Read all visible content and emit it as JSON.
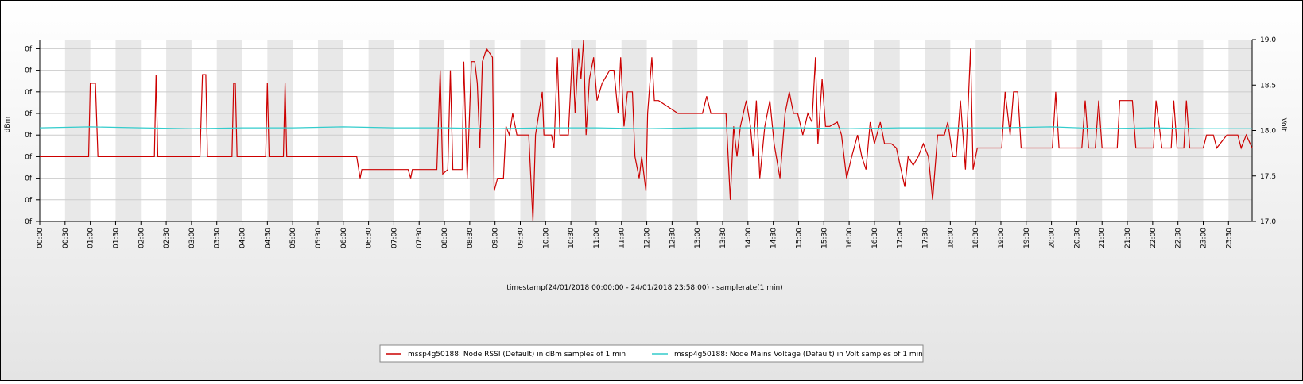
{
  "chart_data": {
    "type": "line",
    "xlabel": "timestamp(24/01/2018 00:00:00 - 24/01/2018 23:58:00) - samplerate(1 min)",
    "ylabel": "dBm",
    "y2label": "Volt",
    "xlim": [
      0,
      1438
    ],
    "xticks": [
      {
        "value": 0,
        "label": "00:00"
      },
      {
        "value": 30,
        "label": "00:30"
      },
      {
        "value": 60,
        "label": "01:00"
      },
      {
        "value": 90,
        "label": "01:30"
      },
      {
        "value": 120,
        "label": "02:00"
      },
      {
        "value": 150,
        "label": "02:30"
      },
      {
        "value": 180,
        "label": "03:00"
      },
      {
        "value": 210,
        "label": "03:30"
      },
      {
        "value": 240,
        "label": "04:00"
      },
      {
        "value": 270,
        "label": "04:30"
      },
      {
        "value": 300,
        "label": "05:00"
      },
      {
        "value": 330,
        "label": "05:30"
      },
      {
        "value": 360,
        "label": "06:00"
      },
      {
        "value": 390,
        "label": "06:30"
      },
      {
        "value": 420,
        "label": "07:00"
      },
      {
        "value": 450,
        "label": "07:30"
      },
      {
        "value": 480,
        "label": "08:00"
      },
      {
        "value": 510,
        "label": "08:30"
      },
      {
        "value": 540,
        "label": "09:00"
      },
      {
        "value": 570,
        "label": "09:30"
      },
      {
        "value": 600,
        "label": "10:00"
      },
      {
        "value": 630,
        "label": "10:30"
      },
      {
        "value": 660,
        "label": "11:00"
      },
      {
        "value": 690,
        "label": "11:30"
      },
      {
        "value": 720,
        "label": "12:00"
      },
      {
        "value": 750,
        "label": "12:30"
      },
      {
        "value": 780,
        "label": "13:00"
      },
      {
        "value": 810,
        "label": "13:30"
      },
      {
        "value": 840,
        "label": "14:00"
      },
      {
        "value": 870,
        "label": "14:30"
      },
      {
        "value": 900,
        "label": "15:00"
      },
      {
        "value": 930,
        "label": "15:30"
      },
      {
        "value": 960,
        "label": "16:00"
      },
      {
        "value": 990,
        "label": "16:30"
      },
      {
        "value": 1020,
        "label": "17:00"
      },
      {
        "value": 1050,
        "label": "17:30"
      },
      {
        "value": 1080,
        "label": "18:00"
      },
      {
        "value": 1110,
        "label": "18:30"
      },
      {
        "value": 1140,
        "label": "19:00"
      },
      {
        "value": 1170,
        "label": "19:30"
      },
      {
        "value": 1200,
        "label": "20:00"
      },
      {
        "value": 1230,
        "label": "20:30"
      },
      {
        "value": 1260,
        "label": "21:00"
      },
      {
        "value": 1290,
        "label": "21:30"
      },
      {
        "value": 1320,
        "label": "22:00"
      },
      {
        "value": 1350,
        "label": "22:30"
      },
      {
        "value": 1380,
        "label": "23:00"
      },
      {
        "value": 1410,
        "label": "23:30"
      }
    ],
    "ylim": [
      -100,
      -57.9
    ],
    "yticks": [
      {
        "value": -100,
        "label": "0f"
      },
      {
        "value": -95,
        "label": "0f"
      },
      {
        "value": -90,
        "label": "0f"
      },
      {
        "value": -85,
        "label": "0f"
      },
      {
        "value": -80,
        "label": "0f"
      },
      {
        "value": -75,
        "label": "0f"
      },
      {
        "value": -70,
        "label": "0f"
      },
      {
        "value": -65,
        "label": "0f"
      },
      {
        "value": -60,
        "label": "0f"
      }
    ],
    "y2lim": [
      17,
      19
    ],
    "y2ticks": [
      {
        "value": 17,
        "label": "17.0"
      },
      {
        "value": 17.5,
        "label": "17.5"
      },
      {
        "value": 18,
        "label": "18.0"
      },
      {
        "value": 18.5,
        "label": "18.5"
      },
      {
        "value": 19,
        "label": "19.0"
      }
    ],
    "grid": true,
    "legend": "bottom",
    "series": [
      {
        "name": "mssp4g50188: Node RSSI (Default) in dBm samples of 1 min",
        "color": "#cc0000",
        "x": [
          0,
          58,
          60,
          66,
          69,
          136,
          138,
          140,
          190,
          193,
          197,
          199,
          228,
          230,
          232,
          234,
          268,
          270,
          272,
          289,
          291,
          293,
          376,
          380,
          382,
          437,
          440,
          442,
          465,
          471,
          475,
          478,
          484,
          487,
          490,
          501,
          503,
          507,
          512,
          516,
          519,
          522,
          525,
          530,
          537,
          539,
          543,
          550,
          553,
          557,
          561,
          566,
          572,
          580,
          585,
          588,
          592,
          596,
          598,
          607,
          610,
          614,
          617,
          627,
          632,
          635,
          639,
          642,
          645,
          648,
          652,
          657,
          661,
          667,
          676,
          681,
          686,
          689,
          693,
          697,
          703,
          706,
          711,
          714,
          719,
          721,
          726,
          729,
          734,
          757,
          786,
          791,
          796,
          814,
          819,
          823,
          827,
          831,
          838,
          843,
          846,
          850,
          854,
          860,
          866,
          871,
          878,
          884,
          889,
          894,
          899,
          905,
          911,
          916,
          920,
          923,
          928,
          932,
          937,
          946,
          951,
          957,
          963,
          970,
          975,
          980,
          985,
          990,
          997,
          1002,
          1010,
          1016,
          1026,
          1030,
          1036,
          1042,
          1048,
          1054,
          1059,
          1065,
          1073,
          1077,
          1083,
          1087,
          1092,
          1098,
          1104,
          1107,
          1112,
          1141,
          1145,
          1151,
          1155,
          1160,
          1164,
          1201,
          1205,
          1209,
          1236,
          1240,
          1244,
          1252,
          1256,
          1260,
          1278,
          1281,
          1296,
          1300,
          1321,
          1324,
          1331,
          1342,
          1345,
          1349,
          1357,
          1360,
          1364,
          1380,
          1384,
          1392,
          1396,
          1408,
          1421,
          1425,
          1431,
          1438
        ],
        "values": [
          -85,
          -85,
          -68,
          -68,
          -85,
          -85,
          -66,
          -85,
          -85,
          -66,
          -66,
          -85,
          -85,
          -68,
          -68,
          -85,
          -85,
          -68,
          -85,
          -85,
          -68,
          -85,
          -85,
          -90,
          -88,
          -88,
          -90,
          -88,
          -88,
          -88,
          -65,
          -89,
          -88,
          -65,
          -88,
          -88,
          -63,
          -90,
          -63,
          -63,
          -68,
          -83,
          -63,
          -60,
          -62,
          -93,
          -90,
          -90,
          -78,
          -80,
          -75,
          -80,
          -80,
          -80,
          -100,
          -80,
          -75,
          -70,
          -80,
          -80,
          -83,
          -62,
          -80,
          -80,
          -60,
          -75,
          -60,
          -67,
          -58,
          -80,
          -67,
          -62,
          -72,
          -68,
          -65,
          -65,
          -75,
          -62,
          -78,
          -70,
          -70,
          -85,
          -90,
          -85,
          -93,
          -75,
          -62,
          -72,
          -72,
          -75,
          -75,
          -71,
          -75,
          -75,
          -95,
          -78,
          -85,
          -78,
          -72,
          -78,
          -85,
          -72,
          -90,
          -78,
          -72,
          -82,
          -90,
          -75,
          -70,
          -75,
          -75,
          -80,
          -75,
          -77,
          -62,
          -82,
          -67,
          -78,
          -78,
          -77,
          -80,
          -90,
          -85,
          -80,
          -85,
          -88,
          -77,
          -82,
          -77,
          -82,
          -82,
          -83,
          -92,
          -85,
          -87,
          -85,
          -82,
          -85,
          -95,
          -80,
          -80,
          -77,
          -85,
          -85,
          -72,
          -88,
          -60,
          -88,
          -83,
          -83,
          -70,
          -80,
          -70,
          -70,
          -83,
          -83,
          -70,
          -83,
          -83,
          -72,
          -83,
          -83,
          -72,
          -83,
          -83,
          -72,
          -72,
          -83,
          -83,
          -72,
          -83,
          -83,
          -72,
          -83,
          -83,
          -72,
          -83,
          -83,
          -80,
          -80,
          -83,
          -80,
          -80,
          -83,
          -80,
          -83
        ]
      },
      {
        "name": "mssp4g50188: Node Mains Voltage (Default) in Volt samples of 1 min",
        "color": "#33cccc",
        "axis": "y2",
        "x": [
          0,
          60,
          120,
          180,
          240,
          300,
          360,
          420,
          480,
          540,
          600,
          660,
          720,
          780,
          840,
          900,
          960,
          1020,
          1080,
          1140,
          1200,
          1260,
          1320,
          1380,
          1438
        ],
        "values": [
          18.03,
          18.04,
          18.03,
          18.02,
          18.03,
          18.03,
          18.04,
          18.03,
          18.03,
          18.02,
          18.03,
          18.03,
          18.02,
          18.03,
          18.03,
          18.03,
          18.02,
          18.03,
          18.03,
          18.03,
          18.04,
          18.02,
          18.03,
          18.02,
          18.02
        ]
      }
    ]
  }
}
